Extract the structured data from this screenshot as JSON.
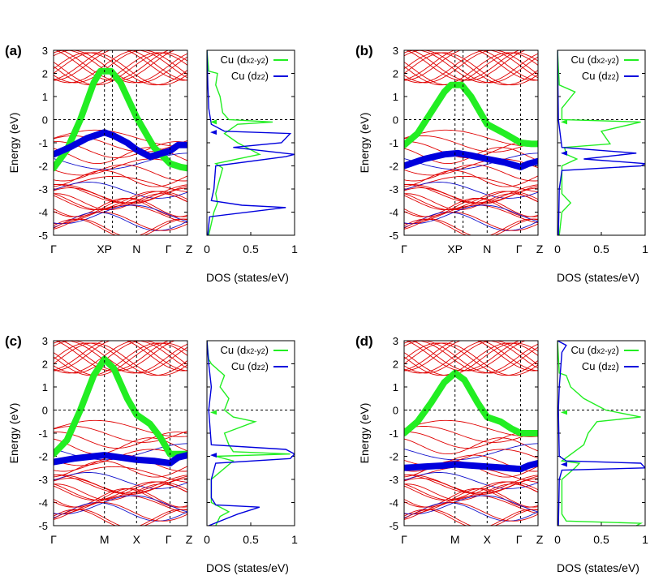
{
  "colors": {
    "bands_thin": "#e00000",
    "dx2y2": "#22ee22",
    "dz2": "#0000dd",
    "thin_blue": "#1010cc",
    "axis": "#000000"
  },
  "common": {
    "ylabel": "Energy (eV)",
    "xlabel_dos": "DOS (states/eV)",
    "yticks": [
      "3",
      "2",
      "1",
      "0",
      "-1",
      "-2",
      "-3",
      "-4",
      "-5"
    ],
    "ylim": [
      -5,
      3
    ],
    "dos_xticks": [
      "0",
      "0.5",
      "1"
    ],
    "dos_xlim": [
      0,
      1
    ],
    "legend": [
      {
        "prefix": "Cu (d",
        "sub_a": "x",
        "sup_a": "2",
        "mid": "-y",
        "sup_b": "2",
        "suffix": ")",
        "key": "dx2y2"
      },
      {
        "prefix": "Cu (d",
        "sub_a": "z",
        "sup_a": "2",
        "mid": "",
        "sup_b": "",
        "suffix": ")",
        "key": "dz2"
      }
    ]
  },
  "panels": [
    {
      "label": "(a)",
      "kpoints": [
        "Γ",
        "XP",
        "N",
        "Γ",
        "Z"
      ],
      "kpos": [
        0,
        0.38,
        0.62,
        0.87,
        1.0
      ],
      "chart_data": {
        "type": "line",
        "series": [
          {
            "name": "Cu (dx2-y2)",
            "x": [
              0,
              0.1,
              0.2,
              0.3,
              0.35,
              0.43,
              0.5,
              0.62,
              0.75,
              0.87,
              0.95,
              1.0
            ],
            "y": [
              -2.1,
              -1.3,
              0.0,
              1.6,
              2.1,
              2.1,
              1.6,
              0.1,
              -1.2,
              -1.9,
              -2.05,
              -2.1
            ]
          },
          {
            "name": "Cu (dz2)",
            "x": [
              0,
              0.12,
              0.25,
              0.38,
              0.45,
              0.55,
              0.62,
              0.72,
              0.87,
              0.93,
              1.0
            ],
            "y": [
              -1.5,
              -1.2,
              -0.8,
              -0.55,
              -0.7,
              -1.0,
              -1.3,
              -1.6,
              -1.35,
              -1.1,
              -1.1
            ]
          }
        ],
        "dos": [
          {
            "name": "Cu (dx2-y2)",
            "e": [
              -5,
              -4.5,
              -4,
              -3.6,
              -3.2,
              -2.5,
              -2.1,
              -1.9,
              -1.5,
              -1.0,
              -0.6,
              -0.2,
              -0.1,
              0.0,
              0.3,
              1.0,
              1.5,
              2.0,
              2.1,
              3.0
            ],
            "d": [
              0.02,
              0.05,
              0.08,
              0.12,
              0.1,
              0.15,
              0.18,
              0.1,
              0.6,
              0.35,
              0.2,
              0.35,
              0.75,
              0.25,
              0.18,
              0.15,
              0.1,
              0.12,
              0.02,
              0.0
            ]
          },
          {
            "name": "Cu (dz2)",
            "e": [
              -5,
              -4.2,
              -3.8,
              -3.7,
              -3.5,
              -3.0,
              -2.0,
              -1.6,
              -1.5,
              -1.2,
              -1.0,
              -0.6,
              -0.5,
              -0.2,
              0.5,
              1.5,
              3.0
            ],
            "d": [
              0.01,
              0.03,
              0.9,
              0.4,
              0.05,
              0.08,
              0.1,
              0.9,
              1.0,
              0.3,
              0.85,
              0.95,
              0.2,
              0.05,
              0.02,
              0.01,
              0.0
            ]
          }
        ]
      }
    },
    {
      "label": "(b)",
      "kpoints": [
        "Γ",
        "XP",
        "N",
        "Γ",
        "Z"
      ],
      "kpos": [
        0,
        0.38,
        0.62,
        0.87,
        1.0
      ],
      "chart_data": {
        "type": "line",
        "series": [
          {
            "name": "Cu (dx2-y2)",
            "x": [
              0,
              0.1,
              0.2,
              0.3,
              0.35,
              0.43,
              0.5,
              0.62,
              0.75,
              0.87,
              0.95,
              1.0
            ],
            "y": [
              -1.1,
              -0.6,
              0.3,
              1.2,
              1.5,
              1.5,
              1.0,
              -0.2,
              -0.6,
              -1.0,
              -1.05,
              -1.05
            ]
          },
          {
            "name": "Cu (dz2)",
            "x": [
              0,
              0.15,
              0.3,
              0.4,
              0.5,
              0.62,
              0.75,
              0.87,
              0.93,
              1.0
            ],
            "y": [
              -2.0,
              -1.7,
              -1.5,
              -1.45,
              -1.55,
              -1.7,
              -1.85,
              -2.05,
              -1.9,
              -1.8
            ]
          }
        ],
        "dos": [
          {
            "name": "Cu (dx2-y2)",
            "e": [
              -5,
              -4,
              -3.6,
              -3.2,
              -2,
              -1.7,
              -1.5,
              -1.2,
              -1.05,
              -0.5,
              -0.1,
              0.0,
              0.5,
              1.2,
              1.5,
              3.0
            ],
            "d": [
              0.02,
              0.05,
              0.15,
              0.05,
              0.05,
              0.22,
              0.1,
              0.08,
              0.6,
              0.5,
              0.95,
              0.05,
              0.05,
              0.2,
              0.02,
              0.0
            ]
          },
          {
            "name": "Cu (dz2)",
            "e": [
              -5,
              -3,
              -2.2,
              -2.0,
              -1.9,
              -1.7,
              -1.45,
              -1.2,
              0.0,
              3.0
            ],
            "d": [
              0.01,
              0.02,
              0.05,
              0.95,
              1.0,
              0.3,
              0.9,
              0.05,
              0.01,
              0.0
            ]
          }
        ]
      }
    },
    {
      "label": "(c)",
      "kpoints": [
        "Γ",
        "M",
        "X",
        "Γ",
        "Z"
      ],
      "kpos": [
        0,
        0.38,
        0.62,
        0.87,
        1.0
      ],
      "chart_data": {
        "type": "line",
        "series": [
          {
            "name": "Cu (dx2-y2)",
            "x": [
              0,
              0.1,
              0.2,
              0.3,
              0.38,
              0.45,
              0.55,
              0.62,
              0.72,
              0.8,
              0.87,
              0.93,
              1.0
            ],
            "y": [
              -1.9,
              -1.3,
              0.0,
              1.5,
              2.2,
              1.8,
              0.5,
              -0.2,
              -0.6,
              -1.2,
              -1.9,
              -1.9,
              -1.9
            ]
          },
          {
            "name": "Cu (dz2)",
            "x": [
              0,
              0.15,
              0.3,
              0.38,
              0.5,
              0.62,
              0.75,
              0.87,
              0.93,
              1.0
            ],
            "y": [
              -2.25,
              -2.1,
              -2.0,
              -1.95,
              -2.05,
              -2.15,
              -2.2,
              -2.3,
              -2.05,
              -1.95
            ]
          }
        ],
        "dos": [
          {
            "name": "Cu (dx2-y2)",
            "e": [
              -5,
              -4.6,
              -4.4,
              -4,
              -3,
              -2.2,
              -2.0,
              -1.9,
              -1.8,
              -1.5,
              -1.0,
              -0.5,
              -0.3,
              0.0,
              0.5,
              1.0,
              1.5,
              2.0,
              2.2,
              3.0
            ],
            "d": [
              0.1,
              0.15,
              0.25,
              0.05,
              0.05,
              0.3,
              0.1,
              0.95,
              0.3,
              0.25,
              0.2,
              0.55,
              0.3,
              0.2,
              0.25,
              0.15,
              0.2,
              0.05,
              0.02,
              0.0
            ]
          },
          {
            "name": "Cu (dz2)",
            "e": [
              -5,
              -4.5,
              -4.2,
              -4.1,
              -3.8,
              -3.0,
              -2.3,
              -2.1,
              -1.9,
              -1.7,
              -1.5,
              0.0,
              1.0,
              2.0,
              3.0
            ],
            "d": [
              0.02,
              0.35,
              0.6,
              0.1,
              0.05,
              0.05,
              0.1,
              0.95,
              1.0,
              0.9,
              0.05,
              0.02,
              0.05,
              0.02,
              0.0
            ]
          }
        ]
      }
    },
    {
      "label": "(d)",
      "kpoints": [
        "Γ",
        "M",
        "X",
        "Γ",
        "Z"
      ],
      "kpos": [
        0,
        0.38,
        0.62,
        0.87,
        1.0
      ],
      "chart_data": {
        "type": "line",
        "series": [
          {
            "name": "Cu (dx2-y2)",
            "x": [
              0,
              0.1,
              0.2,
              0.3,
              0.38,
              0.45,
              0.55,
              0.62,
              0.72,
              0.8,
              0.87,
              0.93,
              1.0
            ],
            "y": [
              -1.0,
              -0.5,
              0.3,
              1.2,
              1.6,
              1.3,
              0.3,
              -0.3,
              -0.5,
              -0.8,
              -1.0,
              -1.0,
              -1.0
            ]
          },
          {
            "name": "Cu (dz2)",
            "x": [
              0,
              0.15,
              0.3,
              0.38,
              0.5,
              0.62,
              0.75,
              0.87,
              0.93,
              1.0
            ],
            "y": [
              -2.5,
              -2.45,
              -2.4,
              -2.35,
              -2.4,
              -2.45,
              -2.5,
              -2.55,
              -2.4,
              -2.3
            ]
          }
        ],
        "dos": [
          {
            "name": "Cu (dx2-y2)",
            "e": [
              -5,
              -4.9,
              -4.8,
              -4.5,
              -3,
              -2.5,
              -2.3,
              -2.2,
              -1.5,
              -1.0,
              -0.5,
              -0.3,
              0.0,
              0.5,
              1.0,
              1.5,
              1.6,
              3.0
            ],
            "d": [
              0.9,
              0.95,
              0.1,
              0.05,
              0.05,
              0.2,
              0.25,
              0.05,
              0.3,
              0.35,
              0.45,
              0.95,
              0.55,
              0.3,
              0.15,
              0.1,
              0.02,
              0.0
            ]
          },
          {
            "name": "Cu (dz2)",
            "e": [
              -5,
              -3,
              -2.6,
              -2.5,
              -2.3,
              -2.2,
              -2.0,
              0.0,
              1.0,
              2.5,
              2.8,
              3.0
            ],
            "d": [
              0.01,
              0.02,
              0.05,
              1.0,
              0.95,
              0.1,
              0.02,
              0.01,
              0.02,
              0.05,
              0.1,
              0.0
            ]
          }
        ]
      }
    }
  ]
}
